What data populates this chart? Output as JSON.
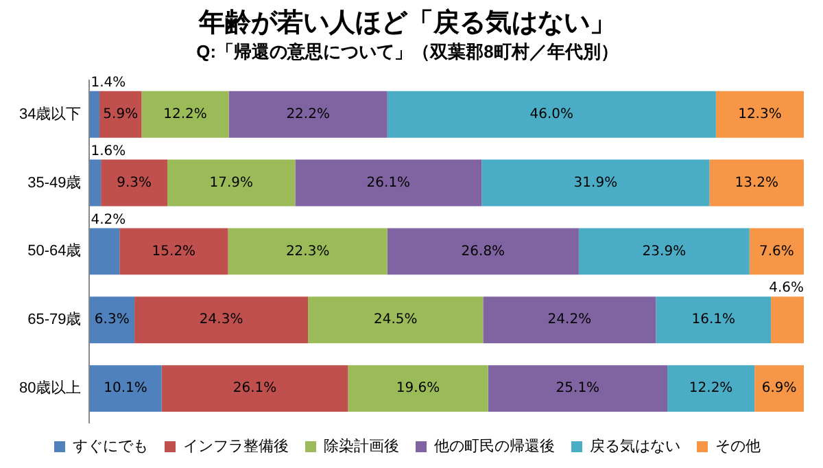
{
  "chart_data": {
    "type": "bar",
    "orientation": "horizontal",
    "stacked": true,
    "title": "年齢が若い人ほど「戻る気はない」",
    "subtitle": "Q:「帰還の意思について」（双葉郡8町村／年代別）",
    "categories": [
      "34歳以下",
      "35-49歳",
      "50-64歳",
      "65-79歳",
      "80歳以上"
    ],
    "series": [
      {
        "name": "すぐにでも",
        "color": "#4f81bd",
        "values": [
          1.4,
          1.6,
          4.2,
          6.3,
          10.1
        ],
        "value_labels": [
          "1.4%",
          "1.6%",
          "4.2%",
          "6.3%",
          "10.1%"
        ]
      },
      {
        "name": "インフラ整備後",
        "color": "#c0504d",
        "values": [
          5.9,
          9.3,
          15.2,
          24.3,
          26.1
        ],
        "value_labels": [
          "5.9%",
          "9.3%",
          "15.2%",
          "24.3%",
          "26.1%"
        ]
      },
      {
        "name": "除染計画後",
        "color": "#9bbb59",
        "values": [
          12.2,
          17.9,
          22.3,
          24.5,
          19.6
        ],
        "value_labels": [
          "12.2%",
          "17.9%",
          "22.3%",
          "24.5%",
          "19.6%"
        ]
      },
      {
        "name": "他の町民の帰還後",
        "color": "#8064a2",
        "values": [
          22.2,
          26.1,
          26.8,
          24.2,
          25.1
        ],
        "value_labels": [
          "22.2%",
          "26.1%",
          "26.8%",
          "24.2%",
          "25.1%"
        ]
      },
      {
        "name": "戻る気はない",
        "color": "#4bacc6",
        "values": [
          46.0,
          31.9,
          23.9,
          16.1,
          12.2
        ],
        "value_labels": [
          "46.0%",
          "31.9%",
          "23.9%",
          "16.1%",
          "12.2%"
        ]
      },
      {
        "name": "その他",
        "color": "#f79646",
        "values": [
          12.3,
          13.2,
          7.6,
          4.6,
          6.9
        ],
        "value_labels": [
          "12.3%",
          "13.2%",
          "7.6%",
          "4.6%",
          "6.9%"
        ]
      }
    ],
    "tick_labels": "y",
    "legend": "bottom"
  }
}
